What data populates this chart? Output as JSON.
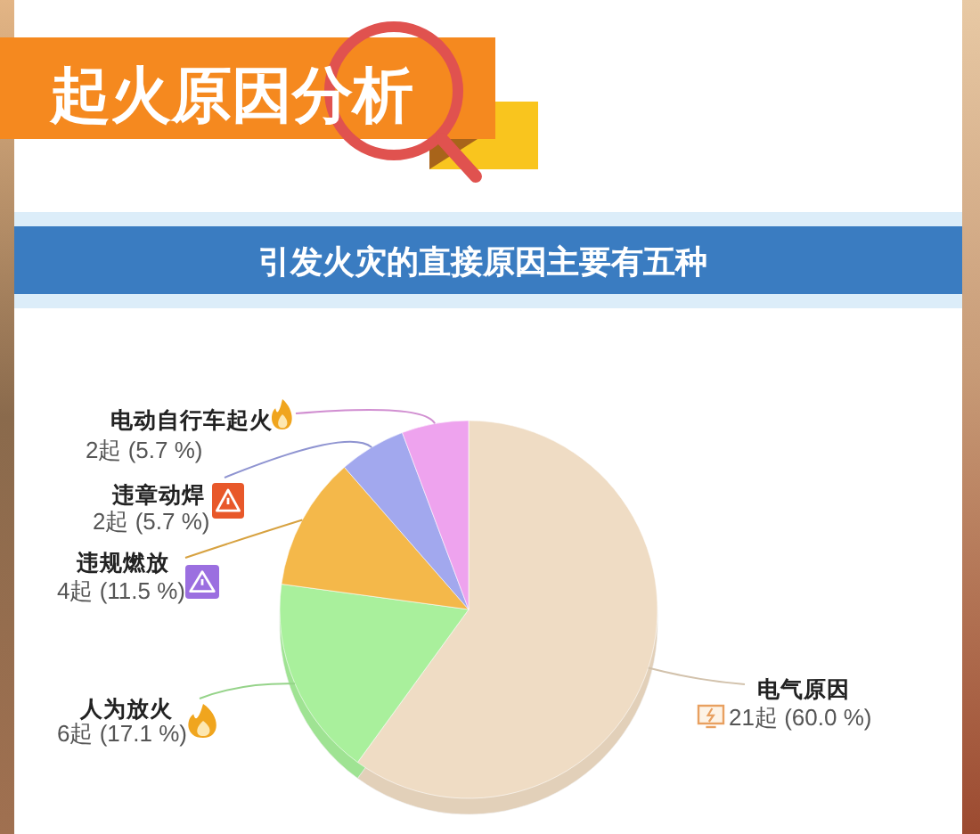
{
  "chart_data": {
    "type": "pie",
    "title": "起火原因分析",
    "subtitle": "引发火灾的直接原因主要有五种",
    "categories": [
      "电气原因",
      "人为放火",
      "违规燃放",
      "违章动焊",
      "电动自行车起火"
    ],
    "values": [
      21,
      6,
      4,
      2,
      2
    ],
    "colors": [
      "#efdcc4",
      "#a9f09c",
      "#f4b84a",
      "#a2a8ee",
      "#eea3ee"
    ],
    "value_labels": [
      "21起 (60.0 %)",
      "6起 (17.1 %)",
      "4起 (11.5 %)",
      "2起 (5.7 %)",
      "2起 (5.7 %)"
    ]
  }
}
